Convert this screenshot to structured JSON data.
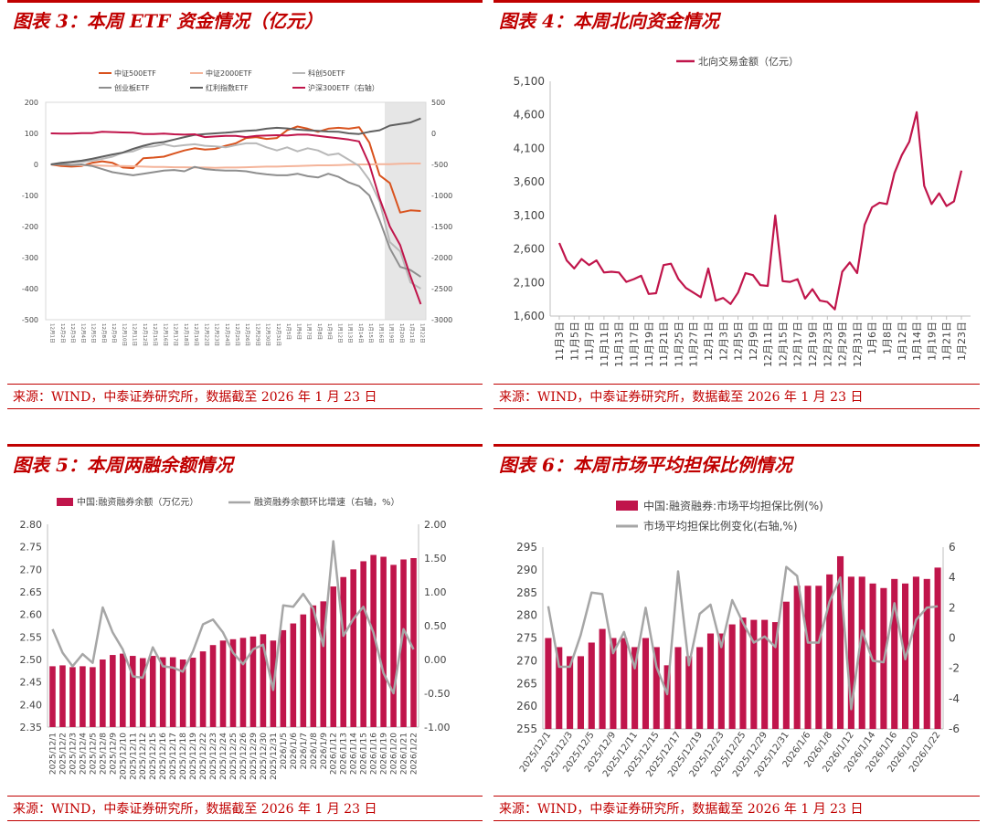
{
  "source_text": "来源：WIND，中泰证券研究所，数据截至 2026 年 1 月 23 日",
  "colors": {
    "accent": "#c00000"
  },
  "panels": {
    "p3": {
      "title": "图表 3：本周 ETF 资金情况（亿元）"
    },
    "p4": {
      "title": "图表 4：本周北向资金情况"
    },
    "p5": {
      "title": "图表 5：本周两融余额情况"
    },
    "p6": {
      "title": "图表 6：本周市场平均担保比例情况"
    }
  },
  "chart_data": [
    {
      "id": "etf",
      "type": "line",
      "title": "",
      "categories": [
        "12月1日",
        "12月2日",
        "12月3日",
        "12月4日",
        "12月5日",
        "12月8日",
        "12月9日",
        "12月10日",
        "12月11日",
        "12月12日",
        "12月15日",
        "12月16日",
        "12月17日",
        "12月18日",
        "12月19日",
        "12月22日",
        "12月23日",
        "12月24日",
        "12月25日",
        "12月26日",
        "12月29日",
        "12月30日",
        "12月31日",
        "1月5日",
        "1月6日",
        "1月7日",
        "1月8日",
        "1月9日",
        "1月12日",
        "1月13日",
        "1月14日",
        "1月15日",
        "1月16日",
        "1月19日",
        "1月20日",
        "1月21日",
        "1月22日"
      ],
      "category_labels": [
        "12月1日",
        "12月2日",
        "12月3日",
        "12月4日",
        "12月5日",
        "12月8日",
        "12月9日",
        "12月10日",
        "12月11日",
        "12月12日",
        "12月15日",
        "12月16日",
        "12月17日",
        "12月18日",
        "12月19日",
        "12月22日",
        "12月23日",
        "12月24日",
        "12月25日",
        "12月26日",
        "12月29日",
        "12月30日",
        "12月31日",
        "1月5日",
        "1月6日",
        "1月7日",
        "1月8日",
        "1月9日",
        "1月12日",
        "1月13日",
        "1月14日",
        "1月15日",
        "1月16日",
        "1月19日",
        "1月20日",
        "1月21日",
        "1月22日"
      ],
      "ylim": [
        -500,
        200
      ],
      "yticks": [
        200,
        100,
        0,
        -100,
        -200,
        -300,
        -400,
        -500
      ],
      "y2lim": [
        -3000,
        500
      ],
      "y2ticks": [
        500,
        0,
        -500,
        -1000,
        -1500,
        -2000,
        -2500,
        -3000
      ],
      "highlight_from_index": 33,
      "series": [
        {
          "name": "中证500ETF",
          "color": "#d9531e",
          "axis": "left",
          "values": [
            0,
            -5,
            -7,
            -5,
            5,
            10,
            5,
            -10,
            -12,
            20,
            22,
            25,
            35,
            45,
            52,
            48,
            50,
            60,
            68,
            85,
            88,
            82,
            85,
            110,
            122,
            115,
            105,
            115,
            118,
            115,
            120,
            70,
            -35,
            -60,
            -155,
            -148,
            -150
          ]
        },
        {
          "name": "中证2000ETF",
          "color": "#f4b49a",
          "axis": "left",
          "values": [
            0,
            -1,
            -2,
            -3,
            -3,
            -4,
            -5,
            -5,
            -6,
            -7,
            -8,
            -8,
            -9,
            -9,
            -10,
            -10,
            -11,
            -10,
            -10,
            -9,
            -8,
            -7,
            -7,
            -6,
            -5,
            -4,
            -3,
            -3,
            -2,
            -1,
            0,
            0,
            1,
            1,
            2,
            3,
            3
          ]
        },
        {
          "name": "科创50ETF",
          "color": "#b8b8b8",
          "axis": "left",
          "values": [
            0,
            3,
            6,
            8,
            12,
            18,
            25,
            38,
            42,
            55,
            58,
            65,
            58,
            62,
            65,
            60,
            58,
            55,
            62,
            68,
            68,
            55,
            45,
            55,
            42,
            52,
            45,
            30,
            35,
            15,
            -5,
            -50,
            -120,
            -250,
            -280,
            -380,
            -400
          ]
        },
        {
          "name": "创业板ETF",
          "color": "#8e8e8e",
          "axis": "left",
          "values": [
            0,
            0,
            -2,
            0,
            -5,
            -15,
            -25,
            -30,
            -35,
            -30,
            -25,
            -20,
            -18,
            -22,
            -8,
            -15,
            -18,
            -20,
            -20,
            -22,
            -28,
            -32,
            -35,
            -35,
            -30,
            -38,
            -42,
            -30,
            -40,
            -58,
            -70,
            -100,
            -180,
            -270,
            -330,
            -340,
            -362
          ]
        },
        {
          "name": "红利指数ETF",
          "color": "#606060",
          "axis": "left",
          "values": [
            0,
            5,
            8,
            12,
            18,
            25,
            32,
            38,
            50,
            60,
            68,
            72,
            80,
            88,
            95,
            98,
            100,
            102,
            105,
            108,
            110,
            115,
            118,
            116,
            112,
            110,
            108,
            106,
            105,
            100,
            98,
            105,
            110,
            125,
            130,
            135,
            148
          ]
        },
        {
          "name": "沪深300ETF（右轴）",
          "color": "#c0154b",
          "axis": "right",
          "values": [
            0,
            -5,
            -5,
            5,
            5,
            25,
            20,
            15,
            10,
            -10,
            -10,
            -5,
            -15,
            -20,
            -15,
            -60,
            -50,
            -40,
            -40,
            -60,
            -40,
            -35,
            -30,
            -35,
            -20,
            -20,
            -40,
            -60,
            -80,
            -100,
            -130,
            -500,
            -1050,
            -1500,
            -1800,
            -2300,
            -2750
          ]
        }
      ]
    },
    {
      "id": "north",
      "type": "line",
      "legend": "北向交易金额（亿元）",
      "ylim": [
        1600,
        5100
      ],
      "yticks": [
        1600,
        2100,
        2600,
        3100,
        3600,
        4100,
        4600,
        5100
      ],
      "ytick_labels": [
        "1,600",
        "2,100",
        "2,600",
        "3,100",
        "3,600",
        "4,100",
        "4,600",
        "5,100"
      ],
      "xtick_labels": [
        "11月3日",
        "11月5日",
        "11月7日",
        "11月11日",
        "11月13日",
        "11月17日",
        "11月19日",
        "11月21日",
        "11月25日",
        "11月27日",
        "12月1日",
        "12月3日",
        "12月5日",
        "12月9日",
        "12月11日",
        "12月15日",
        "12月17日",
        "12月19日",
        "12月23日",
        "12月29日",
        "12月31日",
        "1月6日",
        "1月8日",
        "1月12日",
        "1月14日",
        "1月19日",
        "1月21日",
        "1月23日"
      ],
      "color": "#c0154b",
      "values": [
        2690,
        2430,
        2310,
        2450,
        2360,
        2430,
        2250,
        2260,
        2250,
        2110,
        2150,
        2200,
        1930,
        1940,
        2360,
        2380,
        2150,
        2020,
        1950,
        1880,
        2310,
        1830,
        1870,
        1780,
        1950,
        2240,
        2210,
        2060,
        2050,
        3100,
        2120,
        2110,
        2150,
        1860,
        2000,
        1830,
        1810,
        1700,
        2260,
        2400,
        2240,
        2960,
        3220,
        3290,
        3270,
        3730,
        4000,
        4200,
        4640,
        3540,
        3270,
        3430,
        3240,
        3310,
        3770
      ]
    },
    {
      "id": "margin",
      "type": "bar+line",
      "legend": [
        "中国:融资融券余额（万亿元）",
        "融资融券余额环比增速（右轴，%）"
      ],
      "categories": [
        "2025/12/1",
        "2025/12/2",
        "2025/12/3",
        "2025/12/4",
        "2025/12/5",
        "2025/12/8",
        "2025/12/9",
        "2025/12/10",
        "2025/12/11",
        "2025/12/12",
        "2025/12/15",
        "2025/12/16",
        "2025/12/17",
        "2025/12/18",
        "2025/12/19",
        "2025/12/22",
        "2025/12/23",
        "2025/12/24",
        "2025/12/25",
        "2025/12/26",
        "2025/12/29",
        "2025/12/30",
        "2025/12/31",
        "2026/1/5",
        "2026/1/6",
        "2026/1/7",
        "2026/1/8",
        "2026/1/9",
        "2026/1/12",
        "2026/1/13",
        "2026/1/14",
        "2026/1/15",
        "2026/1/16",
        "2026/1/19",
        "2026/1/20",
        "2026/1/21",
        "2026/1/22"
      ],
      "category_labels": [
        "2025/12/1",
        "2025/12/2",
        "2025/12/3",
        "2025/12/4",
        "2025/12/5",
        "2025/12/8",
        "2025/12/9",
        "2025/12/10",
        "2025/12/11",
        "2025/12/12",
        "2025/12/15",
        "2025/12/16",
        "2025/12/17",
        "2025/12/18",
        "2025/12/19",
        "2025/12/22",
        "2025/12/23",
        "2025/12/24",
        "2025/12/25",
        "2025/12/26",
        "2025/12/29",
        "2025/12/30",
        "2025/12/31",
        "2026/1/5",
        "2026/1/6",
        "2026/1/7",
        "2026/1/8",
        "2026/1/9",
        "2026/1/12",
        "2026/1/13",
        "2026/1/14",
        "2026/1/15",
        "2026/1/16",
        "2026/1/19",
        "2026/1/20",
        "2026/1/21",
        "2026/1/22"
      ],
      "ylim": [
        2.35,
        2.8
      ],
      "yticks": [
        2.8,
        2.75,
        2.7,
        2.65,
        2.6,
        2.55,
        2.5,
        2.45,
        2.4,
        2.35
      ],
      "ytick_labels": [
        "2.80",
        "2.75",
        "2.70",
        "2.65",
        "2.60",
        "2.55",
        "2.50",
        "2.45",
        "2.40",
        "2.35"
      ],
      "y2lim": [
        -1.0,
        2.0
      ],
      "y2ticks": [
        2.0,
        1.5,
        1.0,
        0.5,
        0.0,
        -0.5,
        -1.0
      ],
      "y2tick_labels": [
        "2.00",
        "1.50",
        "1.00",
        "0.50",
        "0.00",
        "-0.50",
        "-1.00"
      ],
      "bar_color": "#c0154b",
      "line_color": "#a6a6a6",
      "bars": [
        2.485,
        2.487,
        2.483,
        2.485,
        2.483,
        2.5,
        2.51,
        2.513,
        2.508,
        2.503,
        2.508,
        2.505,
        2.505,
        2.5,
        2.504,
        2.518,
        2.532,
        2.542,
        2.545,
        2.548,
        2.551,
        2.556,
        2.542,
        2.565,
        2.58,
        2.6,
        2.62,
        2.629,
        2.662,
        2.683,
        2.7,
        2.718,
        2.732,
        2.728,
        2.71,
        2.722,
        2.725
      ],
      "line": [
        0.45,
        0.1,
        -0.1,
        0.08,
        -0.05,
        0.77,
        0.4,
        0.15,
        -0.25,
        -0.27,
        0.18,
        -0.1,
        -0.12,
        -0.18,
        0.12,
        0.52,
        0.59,
        0.4,
        0.1,
        -0.07,
        0.15,
        0.22,
        -0.45,
        0.8,
        0.78,
        0.97,
        0.75,
        0.2,
        1.75,
        0.35,
        0.6,
        0.78,
        0.4,
        -0.2,
        -0.5,
        0.45,
        0.15
      ]
    },
    {
      "id": "guarantee",
      "type": "bar+line",
      "legend": [
        "中国:融资融券:市场平均担保比例(%)",
        "市场平均担保比例变化(右轴,%)"
      ],
      "categories": [
        "2025/12/1",
        "2025/12/2",
        "2025/12/3",
        "2025/12/4",
        "2025/12/5",
        "2025/12/8",
        "2025/12/9",
        "2025/12/10",
        "2025/12/11",
        "2025/12/12",
        "2025/12/15",
        "2025/12/16",
        "2025/12/17",
        "2025/12/18",
        "2025/12/19",
        "2025/12/22",
        "2025/12/23",
        "2025/12/24",
        "2025/12/25",
        "2025/12/26",
        "2025/12/29",
        "2025/12/30",
        "2025/12/31",
        "2026/1/5",
        "2026/1/6",
        "2026/1/7",
        "2026/1/8",
        "2026/1/9",
        "2026/1/12",
        "2026/1/13",
        "2026/1/14",
        "2026/1/15",
        "2026/1/16",
        "2026/1/19",
        "2026/1/20",
        "2026/1/21",
        "2026/1/22"
      ],
      "category_labels": [
        "2025/12/1",
        "",
        "2025/12/3",
        "",
        "2025/12/5",
        "",
        "2025/12/9",
        "",
        "2025/12/11",
        "",
        "2025/12/15",
        "",
        "2025/12/17",
        "",
        "2025/12/19",
        "",
        "2025/12/23",
        "",
        "2025/12/25",
        "",
        "2025/12/29",
        "",
        "2025/12/31",
        "",
        "2026/1/6",
        "",
        "2026/1/8",
        "",
        "2026/1/12",
        "",
        "2026/1/14",
        "",
        "2026/1/16",
        "",
        "2026/1/20",
        "",
        "2026/1/22"
      ],
      "ylim": [
        255,
        295
      ],
      "yticks": [
        295,
        290,
        285,
        280,
        275,
        270,
        265,
        260,
        255
      ],
      "y2lim": [
        -6,
        6
      ],
      "y2ticks": [
        6,
        4,
        2,
        0,
        -2,
        -4,
        -6
      ],
      "bar_color": "#c0154b",
      "line_color": "#a6a6a6",
      "bars": [
        275,
        273,
        271,
        271,
        274,
        277,
        275,
        275,
        273,
        275,
        273,
        269,
        273,
        271,
        273,
        276,
        276,
        278,
        279.5,
        279,
        279,
        278.5,
        283,
        286.5,
        286.5,
        286.5,
        289,
        293,
        288.5,
        288.5,
        287,
        286,
        288,
        287,
        288.5,
        288,
        290.5
      ],
      "line": [
        2.1,
        -1.9,
        -1.9,
        0.2,
        3.0,
        2.9,
        -1.0,
        0.4,
        -2.0,
        2.0,
        -1.9,
        -3.7,
        4.4,
        -1.8,
        1.6,
        2.2,
        -0.6,
        2.5,
        1.0,
        -0.3,
        0.1,
        -0.6,
        4.7,
        4.1,
        -0.3,
        -0.3,
        2.4,
        4.0,
        -4.7,
        0.5,
        -1.5,
        -1.6,
        2.3,
        -1.4,
        1.2,
        2.0,
        2.1
      ]
    }
  ]
}
